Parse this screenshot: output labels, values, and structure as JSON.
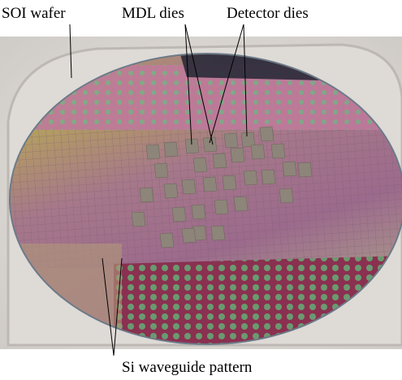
{
  "labels": {
    "soi_wafer": "SOI wafer",
    "mdl_dies": "MDL dies",
    "detector_dies": "Detector dies",
    "waveguide": "Si waveguide pattern"
  }
}
